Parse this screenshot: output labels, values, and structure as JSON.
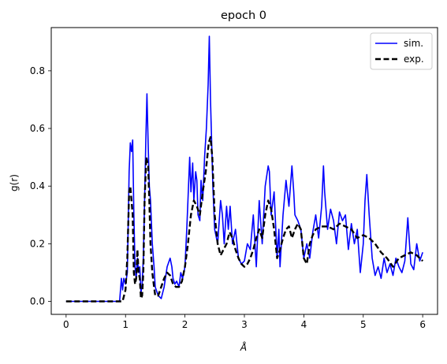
{
  "chart_data": {
    "type": "line",
    "title": "epoch 0",
    "xlabel": "Å",
    "ylabel": "g(r)",
    "xlim": [
      -0.25,
      6.25
    ],
    "ylim": [
      -0.045,
      0.95
    ],
    "xticks": [
      0,
      1,
      2,
      3,
      4,
      5,
      6
    ],
    "xtick_labels": [
      "0",
      "1",
      "2",
      "3",
      "4",
      "5",
      "6"
    ],
    "yticks": [
      0.0,
      0.2,
      0.4,
      0.6,
      0.8
    ],
    "ytick_labels": [
      "0.0",
      "0.2",
      "0.4",
      "0.6",
      "0.8"
    ],
    "grid": false,
    "legend_position": "upper right",
    "series": [
      {
        "name": "sim.",
        "color": "#0000ff",
        "dash": "solid",
        "x": [
          0,
          0.5,
          0.9,
          0.93,
          0.95,
          0.97,
          1.0,
          1.03,
          1.06,
          1.08,
          1.1,
          1.12,
          1.14,
          1.16,
          1.18,
          1.2,
          1.22,
          1.24,
          1.26,
          1.28,
          1.3,
          1.32,
          1.34,
          1.36,
          1.38,
          1.4,
          1.42,
          1.45,
          1.48,
          1.5,
          1.55,
          1.6,
          1.65,
          1.7,
          1.75,
          1.78,
          1.8,
          1.83,
          1.86,
          1.9,
          1.93,
          1.96,
          2.0,
          2.03,
          2.05,
          2.08,
          2.1,
          2.13,
          2.15,
          2.18,
          2.2,
          2.22,
          2.25,
          2.27,
          2.3,
          2.33,
          2.36,
          2.39,
          2.41,
          2.43,
          2.45,
          2.47,
          2.5,
          2.55,
          2.6,
          2.63,
          2.66,
          2.7,
          2.73,
          2.76,
          2.8,
          2.85,
          2.9,
          2.95,
          3.0,
          3.05,
          3.1,
          3.15,
          3.2,
          3.25,
          3.3,
          3.35,
          3.4,
          3.42,
          3.45,
          3.5,
          3.55,
          3.58,
          3.6,
          3.65,
          3.7,
          3.75,
          3.8,
          3.83,
          3.85,
          3.9,
          3.95,
          4.0,
          4.05,
          4.1,
          4.15,
          4.2,
          4.25,
          4.3,
          4.33,
          4.35,
          4.4,
          4.45,
          4.5,
          4.55,
          4.6,
          4.65,
          4.7,
          4.75,
          4.8,
          4.85,
          4.9,
          4.95,
          5.0,
          5.03,
          5.06,
          5.1,
          5.15,
          5.2,
          5.25,
          5.3,
          5.35,
          5.4,
          5.45,
          5.5,
          5.55,
          5.6,
          5.65,
          5.7,
          5.75,
          5.8,
          5.85,
          5.9,
          5.95,
          6.0
        ],
        "y": [
          0.0,
          0.0,
          0.0,
          0.08,
          0.04,
          0.08,
          0.06,
          0.1,
          0.45,
          0.55,
          0.52,
          0.56,
          0.3,
          0.12,
          0.08,
          0.15,
          0.1,
          0.12,
          0.03,
          0.06,
          0.15,
          0.35,
          0.55,
          0.72,
          0.55,
          0.4,
          0.35,
          0.2,
          0.12,
          0.05,
          0.02,
          0.01,
          0.05,
          0.12,
          0.15,
          0.12,
          0.08,
          0.06,
          0.07,
          0.05,
          0.1,
          0.08,
          0.12,
          0.25,
          0.35,
          0.5,
          0.38,
          0.48,
          0.35,
          0.45,
          0.42,
          0.3,
          0.28,
          0.42,
          0.35,
          0.5,
          0.6,
          0.75,
          0.92,
          0.7,
          0.55,
          0.4,
          0.25,
          0.2,
          0.35,
          0.3,
          0.2,
          0.33,
          0.25,
          0.33,
          0.2,
          0.25,
          0.15,
          0.13,
          0.14,
          0.2,
          0.18,
          0.3,
          0.12,
          0.35,
          0.2,
          0.4,
          0.47,
          0.45,
          0.3,
          0.38,
          0.15,
          0.25,
          0.12,
          0.3,
          0.42,
          0.33,
          0.47,
          0.38,
          0.3,
          0.28,
          0.25,
          0.15,
          0.2,
          0.15,
          0.24,
          0.3,
          0.22,
          0.33,
          0.47,
          0.38,
          0.25,
          0.32,
          0.28,
          0.2,
          0.31,
          0.28,
          0.3,
          0.18,
          0.27,
          0.2,
          0.25,
          0.1,
          0.2,
          0.35,
          0.44,
          0.3,
          0.15,
          0.09,
          0.12,
          0.08,
          0.15,
          0.1,
          0.13,
          0.09,
          0.15,
          0.12,
          0.1,
          0.14,
          0.29,
          0.13,
          0.11,
          0.2,
          0.14,
          0.17
        ]
      },
      {
        "name": "exp.",
        "color": "#000000",
        "dash": "dashed",
        "x": [
          0,
          0.5,
          0.9,
          0.95,
          1.0,
          1.03,
          1.06,
          1.08,
          1.1,
          1.12,
          1.14,
          1.16,
          1.18,
          1.2,
          1.22,
          1.24,
          1.26,
          1.28,
          1.3,
          1.32,
          1.35,
          1.38,
          1.4,
          1.42,
          1.45,
          1.48,
          1.5,
          1.55,
          1.6,
          1.65,
          1.7,
          1.75,
          1.8,
          1.85,
          1.9,
          1.95,
          2.0,
          2.05,
          2.1,
          2.15,
          2.2,
          2.25,
          2.3,
          2.35,
          2.4,
          2.43,
          2.46,
          2.5,
          2.55,
          2.6,
          2.65,
          2.7,
          2.75,
          2.8,
          2.85,
          2.9,
          2.95,
          3.0,
          3.05,
          3.1,
          3.15,
          3.2,
          3.25,
          3.3,
          3.35,
          3.4,
          3.45,
          3.5,
          3.55,
          3.6,
          3.65,
          3.7,
          3.75,
          3.8,
          3.85,
          3.9,
          3.95,
          4.0,
          4.05,
          4.1,
          4.15,
          4.2,
          4.3,
          4.4,
          4.5,
          4.6,
          4.7,
          4.8,
          4.9,
          5.0,
          5.1,
          5.2,
          5.3,
          5.4,
          5.5,
          5.6,
          5.7,
          5.8,
          5.9,
          6.0
        ],
        "y": [
          0.0,
          0.0,
          0.0,
          0.0,
          0.04,
          0.15,
          0.38,
          0.4,
          0.35,
          0.3,
          0.1,
          0.06,
          0.08,
          0.18,
          0.1,
          0.08,
          0.01,
          0.02,
          0.1,
          0.35,
          0.5,
          0.47,
          0.35,
          0.2,
          0.1,
          0.05,
          0.02,
          0.02,
          0.05,
          0.08,
          0.1,
          0.09,
          0.06,
          0.05,
          0.05,
          0.07,
          0.12,
          0.2,
          0.3,
          0.35,
          0.33,
          0.3,
          0.38,
          0.45,
          0.55,
          0.57,
          0.5,
          0.3,
          0.2,
          0.16,
          0.18,
          0.2,
          0.24,
          0.22,
          0.18,
          0.15,
          0.13,
          0.12,
          0.13,
          0.15,
          0.18,
          0.22,
          0.25,
          0.22,
          0.3,
          0.35,
          0.32,
          0.25,
          0.15,
          0.18,
          0.22,
          0.25,
          0.26,
          0.22,
          0.25,
          0.27,
          0.25,
          0.15,
          0.13,
          0.2,
          0.23,
          0.25,
          0.26,
          0.26,
          0.25,
          0.27,
          0.26,
          0.25,
          0.22,
          0.23,
          0.22,
          0.2,
          0.17,
          0.15,
          0.12,
          0.15,
          0.16,
          0.17,
          0.16,
          0.14
        ]
      }
    ]
  }
}
